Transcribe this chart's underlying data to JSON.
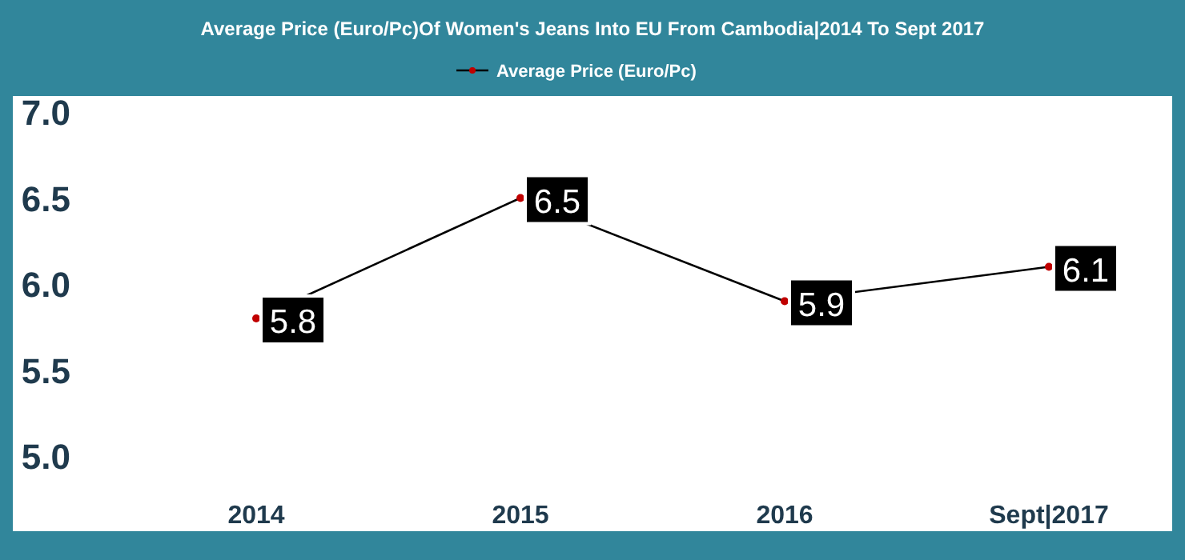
{
  "chart_data": {
    "type": "line",
    "title": "Average Price (Euro/Pc)Of Women's Jeans Into EU From Cambodia|2014 To Sept 2017",
    "categories": [
      "2014",
      "2015",
      "2016",
      "Sept|2017"
    ],
    "series": [
      {
        "name": "Average Price (Euro/Pc)",
        "color": "#000000",
        "values": [
          5.8,
          6.5,
          5.9,
          6.1
        ]
      }
    ],
    "ylim": [
      5,
      7
    ],
    "yticks": [
      {
        "value": 5,
        "label": "5.0"
      },
      {
        "value": 5.5,
        "label": "5.5"
      },
      {
        "value": 6,
        "label": "6.0"
      },
      {
        "value": 6.5,
        "label": "6.5"
      },
      {
        "value": 7,
        "label": "7.0"
      }
    ],
    "grid": false,
    "legend": "top",
    "marker": "circle",
    "data_labels": true
  }
}
